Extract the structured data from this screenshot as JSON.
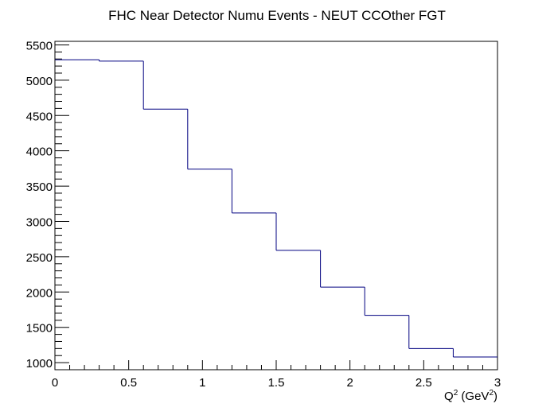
{
  "chart_data": {
    "type": "histogram",
    "title": "FHC Near Detector Numu Events - NEUT CCOther FGT",
    "xlabel": {
      "base": "Q",
      "sup1": "2",
      "mid": " (GeV",
      "sup2": "2",
      "end": ")"
    },
    "ylabel": "",
    "xlim": [
      0,
      3
    ],
    "ylim": [
      900,
      5550
    ],
    "x_ticks": [
      {
        "value": 0,
        "label": "0"
      },
      {
        "value": 0.5,
        "label": "0.5"
      },
      {
        "value": 1,
        "label": "1"
      },
      {
        "value": 1.5,
        "label": "1.5"
      },
      {
        "value": 2,
        "label": "2"
      },
      {
        "value": 2.5,
        "label": "2.5"
      },
      {
        "value": 3,
        "label": "3"
      }
    ],
    "y_ticks": [
      {
        "value": 1000,
        "label": "1000"
      },
      {
        "value": 1500,
        "label": "1500"
      },
      {
        "value": 2000,
        "label": "2000"
      },
      {
        "value": 2500,
        "label": "2500"
      },
      {
        "value": 3000,
        "label": "3000"
      },
      {
        "value": 3500,
        "label": "3500"
      },
      {
        "value": 4000,
        "label": "4000"
      },
      {
        "value": 4500,
        "label": "4500"
      },
      {
        "value": 5000,
        "label": "5000"
      },
      {
        "value": 5500,
        "label": "5500"
      }
    ],
    "bin_edges": [
      0,
      0.3,
      0.6,
      0.9,
      1.2,
      1.5,
      1.8,
      2.1,
      2.4,
      2.7,
      3.0
    ],
    "values": [
      5290,
      5270,
      4590,
      3740,
      3120,
      2590,
      2070,
      1670,
      1200,
      1080
    ],
    "line_color": "#000080",
    "grid": false,
    "legend": "none"
  }
}
